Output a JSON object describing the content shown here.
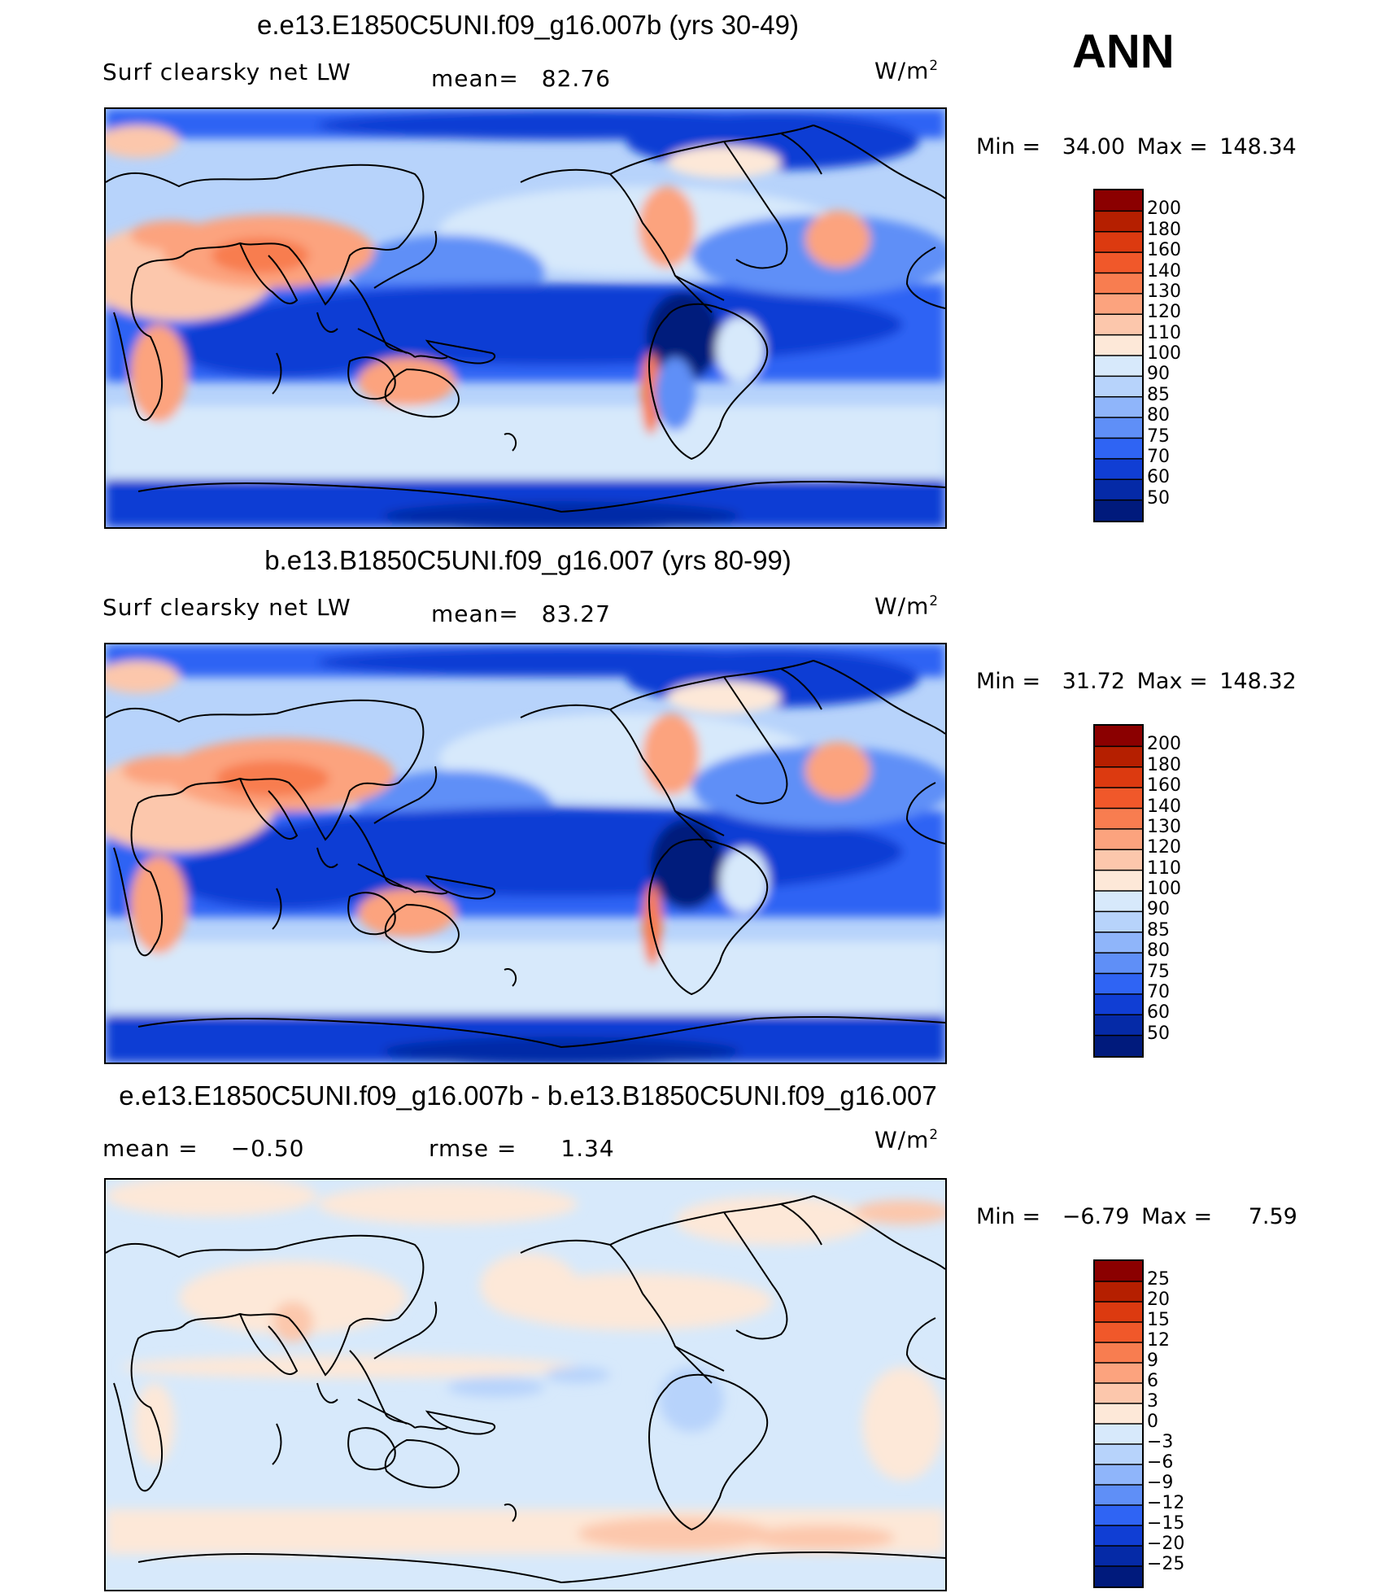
{
  "header": {
    "season": "ANN"
  },
  "chart_data": [
    {
      "type": "heatmap",
      "panel": "test",
      "title": "e.e13.E1850C5UNI.f09_g16.007b (yrs 30-49)",
      "variable": "Surf clearsky net LW",
      "stat_label": "mean=",
      "stat_value": "82.76",
      "units_base": "W/m",
      "units_exp": "2",
      "min_label": "Min =",
      "min_value": "34.00",
      "max_label": "Max =",
      "max_value": "148.34",
      "levels": [
        "200",
        "180",
        "160",
        "140",
        "130",
        "120",
        "110",
        "100",
        "90",
        "85",
        "80",
        "75",
        "70",
        "60",
        "50"
      ],
      "colors": [
        "#8b0000",
        "#b51f00",
        "#dc3a10",
        "#f0582a",
        "#f87d50",
        "#fca37e",
        "#fcc7ac",
        "#fde8d8",
        "#d7e9fb",
        "#b7d3fb",
        "#8fb5fa",
        "#5f8ff7",
        "#2f64f4",
        "#103ed4",
        "#052aa7",
        "#001a7c"
      ]
    },
    {
      "type": "heatmap",
      "panel": "control",
      "title": "b.e13.B1850C5UNI.f09_g16.007 (yrs 80-99)",
      "variable": "Surf clearsky net LW",
      "stat_label": "mean=",
      "stat_value": "83.27",
      "units_base": "W/m",
      "units_exp": "2",
      "min_label": "Min =",
      "min_value": "31.72",
      "max_label": "Max =",
      "max_value": "148.32",
      "levels": [
        "200",
        "180",
        "160",
        "140",
        "130",
        "120",
        "110",
        "100",
        "90",
        "85",
        "80",
        "75",
        "70",
        "60",
        "50"
      ],
      "colors": [
        "#8b0000",
        "#b51f00",
        "#dc3a10",
        "#f0582a",
        "#f87d50",
        "#fca37e",
        "#fcc7ac",
        "#fde8d8",
        "#d7e9fb",
        "#b7d3fb",
        "#8fb5fa",
        "#5f8ff7",
        "#2f64f4",
        "#103ed4",
        "#052aa7",
        "#001a7c"
      ]
    },
    {
      "type": "heatmap",
      "panel": "difference",
      "title": "e.e13.E1850C5UNI.f09_g16.007b - b.e13.B1850C5UNI.f09_g16.007",
      "stat_label": "mean =",
      "stat_value": "−0.50",
      "stat2_label": "rmse =",
      "stat2_value": "1.34",
      "units_base": "W/m",
      "units_exp": "2",
      "min_label": "Min =",
      "min_value": "−6.79",
      "max_label": "Max =",
      "max_value": "7.59",
      "levels": [
        "25",
        "20",
        "15",
        "12",
        "9",
        "6",
        "3",
        "0",
        "−3",
        "−6",
        "−9",
        "−12",
        "−15",
        "−20",
        "−25"
      ],
      "colors": [
        "#8b0000",
        "#b51f00",
        "#dc3a10",
        "#f0582a",
        "#f87d50",
        "#fca37e",
        "#fcc7ac",
        "#fde8d8",
        "#d7e9fb",
        "#b7d3fb",
        "#8fb5fa",
        "#5f8ff7",
        "#2f64f4",
        "#103ed4",
        "#052aa7",
        "#001a7c"
      ]
    }
  ]
}
